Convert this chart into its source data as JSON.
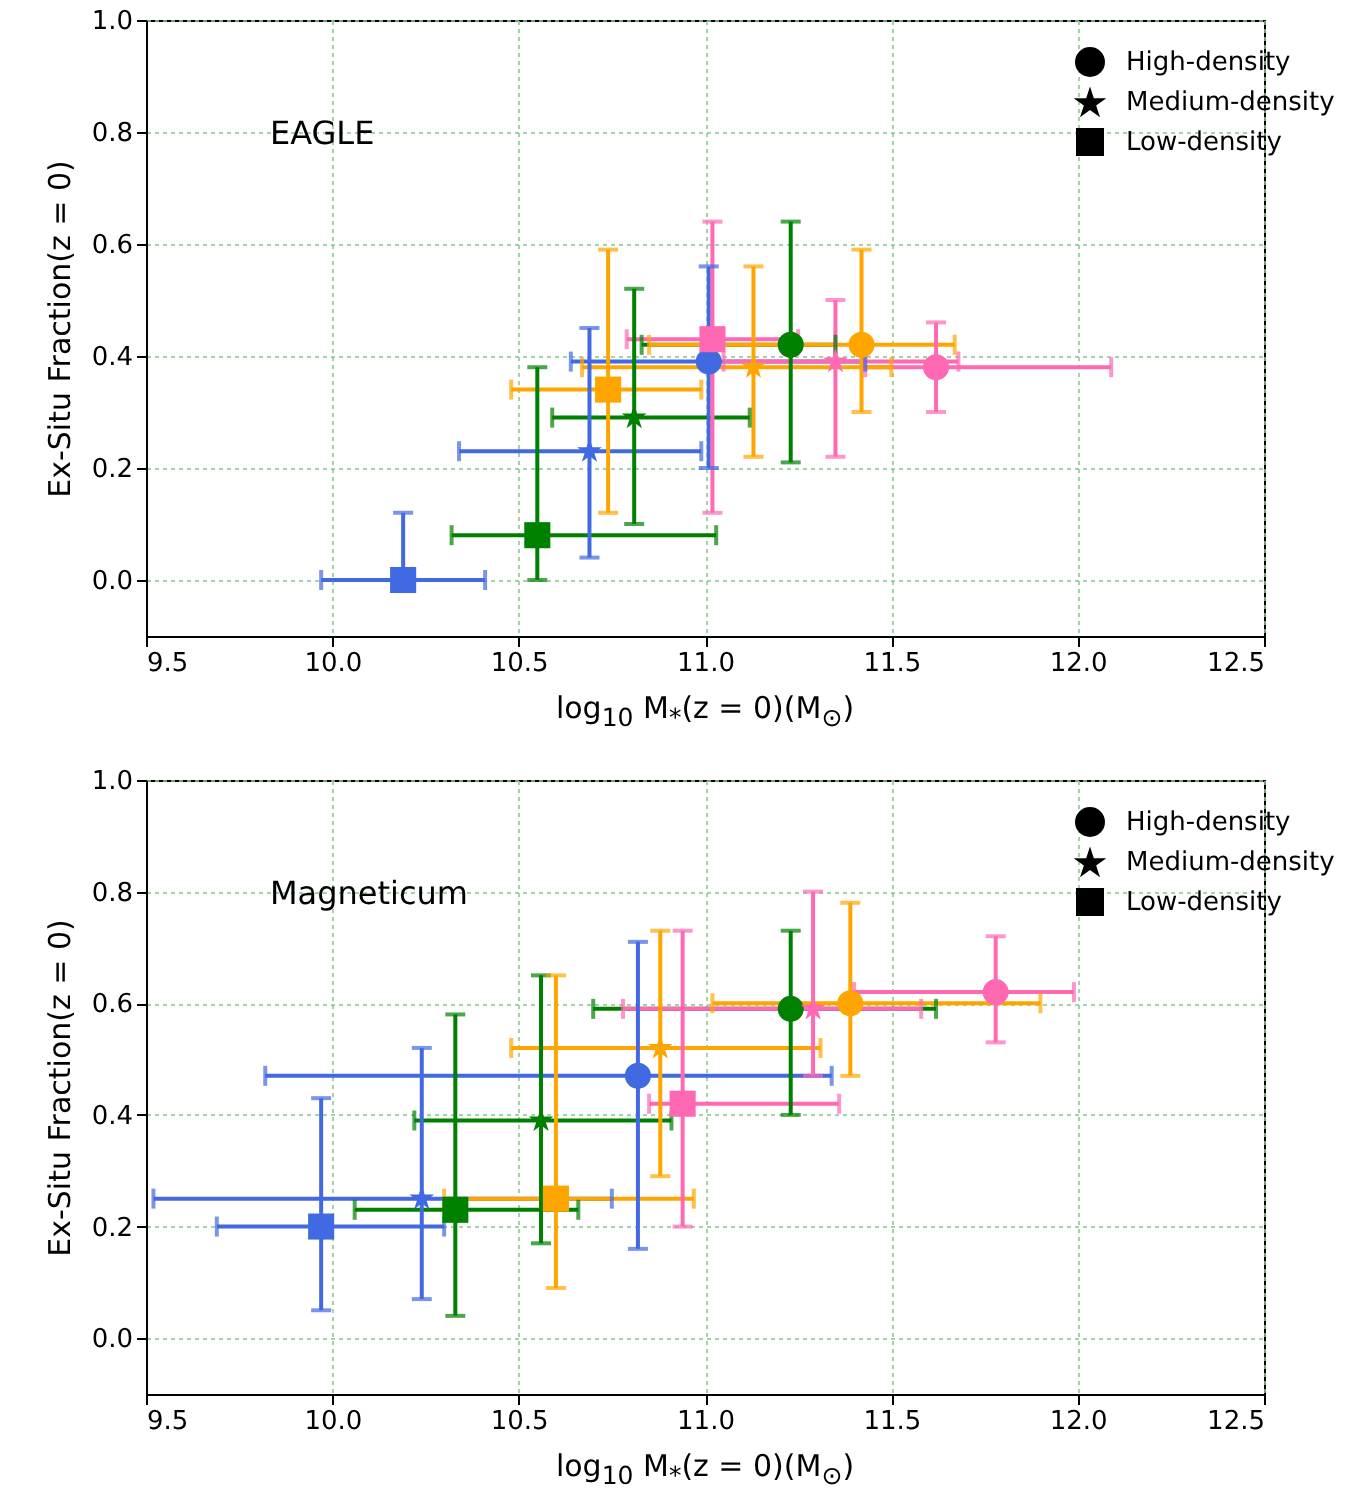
{
  "chart_data": [
    {
      "type": "scatter",
      "xlabel": "log$_{10}$ M$_{*}$(z = 0)(M$_{⊙}$)",
      "ylabel": "Ex-Situ Fraction(z = 0)",
      "annotations": [
        "EAGLE",
        "High-density",
        "Medium-density",
        "Low-density"
      ],
      "grid": true,
      "xlim": [
        9.5,
        12.5
      ],
      "xticks": [
        {
          "value": 9.5,
          "label": "9.5"
        },
        {
          "value": 10,
          "label": "10.0"
        },
        {
          "value": 10.5,
          "label": "10.5"
        },
        {
          "value": 11,
          "label": "11.0"
        },
        {
          "value": 11.5,
          "label": "11.5"
        },
        {
          "value": 12,
          "label": "12.0"
        },
        {
          "value": 12.5,
          "label": "12.5"
        }
      ],
      "ylim": [
        -0.1,
        1.0
      ],
      "yticks": [
        {
          "value": 0,
          "label": "0.0"
        },
        {
          "value": 0.2,
          "label": "0.2"
        },
        {
          "value": 0.4,
          "label": "0.4"
        },
        {
          "value": 0.6,
          "label": "0.6"
        },
        {
          "value": 0.8,
          "label": "0.8"
        },
        {
          "value": 1,
          "label": "1.0"
        }
      ],
      "series": [
        {
          "marker": "circle",
          "colors": [
            "#4169e1",
            "#008000",
            "#ffa500",
            "#ff69b4"
          ],
          "x": [
            11.01,
            11.23,
            11.42,
            11.62
          ],
          "values": [
            0.39,
            0.42,
            0.42,
            0.38
          ],
          "xerrors": [
            [
              10.64,
              11.43
            ],
            [
              10.83,
              11.35
            ],
            [
              10.85,
              11.67
            ],
            [
              11.43,
              12.09
            ]
          ],
          "errors": [
            [
              0.2,
              0.56
            ],
            [
              0.21,
              0.64
            ],
            [
              0.3,
              0.59
            ],
            [
              0.3,
              0.46
            ]
          ]
        },
        {
          "marker": "star",
          "colors": [
            "#4169e1",
            "#008000",
            "#ffa500",
            "#ff69b4"
          ],
          "x": [
            10.69,
            10.81,
            11.13,
            11.35
          ],
          "values": [
            0.23,
            0.29,
            0.38,
            0.39
          ],
          "xerrors": [
            [
              10.34,
              10.99
            ],
            [
              10.59,
              11.12
            ],
            [
              10.67,
              11.5
            ],
            [
              11.05,
              11.68
            ]
          ],
          "errors": [
            [
              0.04,
              0.45
            ],
            [
              0.1,
              0.52
            ],
            [
              0.22,
              0.56
            ],
            [
              0.22,
              0.5
            ]
          ]
        },
        {
          "marker": "square",
          "colors": [
            "#4169e1",
            "#008000",
            "#ffa500",
            "#ff69b4"
          ],
          "x": [
            10.19,
            10.55,
            10.74,
            11.02
          ],
          "values": [
            0.0,
            0.08,
            0.34,
            0.43
          ],
          "xerrors": [
            [
              9.97,
              10.41
            ],
            [
              10.32,
              11.03
            ],
            [
              10.48,
              10.99
            ],
            [
              10.79,
              11.25
            ]
          ],
          "errors": [
            [
              0,
              0.12
            ],
            [
              0,
              0.38
            ],
            [
              0.12,
              0.59
            ],
            [
              0.12,
              0.64
            ]
          ]
        }
      ]
    },
    {
      "type": "scatter",
      "xlabel": "log$_{10}$ M$_{*}$(z = 0)(M$_{⊙}$)",
      "ylabel": "Ex-Situ Fraction(z = 0)",
      "annotations": [
        "Magneticum",
        "High-density",
        "Medium-density",
        "Low-density"
      ],
      "grid": true,
      "xlim": [
        9.5,
        12.5
      ],
      "xticks": [
        {
          "value": 9.5,
          "label": "9.5"
        },
        {
          "value": 10,
          "label": "10.0"
        },
        {
          "value": 10.5,
          "label": "10.5"
        },
        {
          "value": 11,
          "label": "11.0"
        },
        {
          "value": 11.5,
          "label": "11.5"
        },
        {
          "value": 12,
          "label": "12.0"
        },
        {
          "value": 12.5,
          "label": "12.5"
        }
      ],
      "ylim": [
        -0.1,
        1.0
      ],
      "yticks": [
        {
          "value": 0,
          "label": "0.0"
        },
        {
          "value": 0.2,
          "label": "0.2"
        },
        {
          "value": 0.4,
          "label": "0.4"
        },
        {
          "value": 0.6,
          "label": "0.6"
        },
        {
          "value": 0.8,
          "label": "0.8"
        },
        {
          "value": 1,
          "label": "1.0"
        }
      ],
      "series": [
        {
          "marker": "circle",
          "colors": [
            "#4169e1",
            "#008000",
            "#ffa500",
            "#ff69b4"
          ],
          "x": [
            10.82,
            11.23,
            11.39,
            11.78
          ],
          "values": [
            0.47,
            0.59,
            0.6,
            0.62
          ],
          "xerrors": [
            [
              9.82,
              11.34
            ],
            [
              10.7,
              11.62
            ],
            [
              11.02,
              11.9
            ],
            [
              11.4,
              11.99
            ]
          ],
          "errors": [
            [
              0.16,
              0.71
            ],
            [
              0.4,
              0.73
            ],
            [
              0.47,
              0.78
            ],
            [
              0.53,
              0.72
            ]
          ]
        },
        {
          "marker": "star",
          "colors": [
            "#4169e1",
            "#008000",
            "#ffa500",
            "#ff69b4"
          ],
          "x": [
            10.24,
            10.56,
            10.88,
            11.29
          ],
          "values": [
            0.25,
            0.39,
            0.52,
            0.59
          ],
          "xerrors": [
            [
              9.52,
              10.75
            ],
            [
              10.22,
              10.91
            ],
            [
              10.48,
              11.31
            ],
            [
              10.78,
              11.58
            ]
          ],
          "errors": [
            [
              0.07,
              0.52
            ],
            [
              0.17,
              0.65
            ],
            [
              0.29,
              0.73
            ],
            [
              0.47,
              0.8
            ]
          ]
        },
        {
          "marker": "square",
          "colors": [
            "#4169e1",
            "#008000",
            "#ffa500",
            "#ff69b4"
          ],
          "x": [
            9.97,
            10.33,
            10.6,
            10.94
          ],
          "values": [
            0.2,
            0.23,
            0.25,
            0.42
          ],
          "xerrors": [
            [
              9.69,
              10.3
            ],
            [
              10.06,
              10.66
            ],
            [
              10.3,
              10.97
            ],
            [
              10.85,
              11.36
            ]
          ],
          "errors": [
            [
              0.05,
              0.43
            ],
            [
              0.04,
              0.58
            ],
            [
              0.09,
              0.65
            ],
            [
              0.2,
              0.73
            ]
          ]
        }
      ]
    }
  ]
}
